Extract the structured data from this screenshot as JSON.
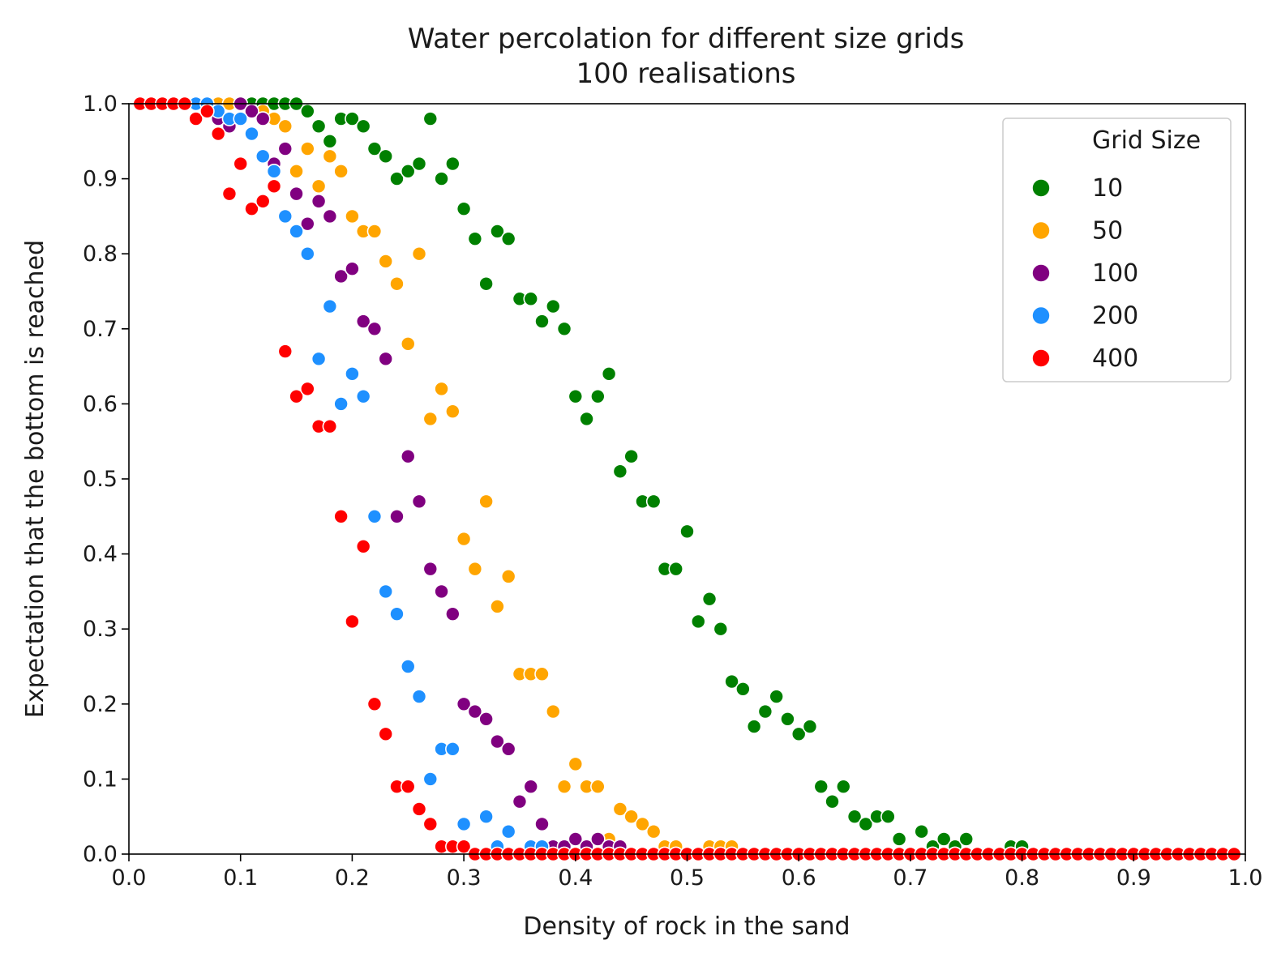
{
  "chart_data": {
    "type": "scatter",
    "title": "Water percolation for different size grids",
    "subtitle": "100 realisations",
    "xlabel": "Density of rock in the sand",
    "ylabel": "Expectation that the bottom is reached",
    "xlim": [
      0.0,
      1.0
    ],
    "ylim": [
      0.0,
      1.0
    ],
    "xticks": [
      "0.0",
      "0.1",
      "0.2",
      "0.3",
      "0.4",
      "0.5",
      "0.6",
      "0.7",
      "0.8",
      "0.9",
      "1.0"
    ],
    "yticks": [
      "0.0",
      "0.1",
      "0.2",
      "0.3",
      "0.4",
      "0.5",
      "0.6",
      "0.7",
      "0.8",
      "0.9",
      "1.0"
    ],
    "grid": false,
    "legend": {
      "title": "Grid Size",
      "placement": "top-right"
    },
    "series": [
      {
        "name": "10",
        "color": "#008000",
        "x": [
          0.01,
          0.02,
          0.03,
          0.04,
          0.05,
          0.06,
          0.07,
          0.08,
          0.09,
          0.1,
          0.11,
          0.12,
          0.13,
          0.14,
          0.15,
          0.16,
          0.17,
          0.18,
          0.19,
          0.2,
          0.21,
          0.22,
          0.23,
          0.24,
          0.25,
          0.26,
          0.27,
          0.28,
          0.29,
          0.3,
          0.31,
          0.32,
          0.33,
          0.34,
          0.35,
          0.36,
          0.37,
          0.38,
          0.39,
          0.4,
          0.41,
          0.42,
          0.43,
          0.44,
          0.45,
          0.46,
          0.47,
          0.48,
          0.49,
          0.5,
          0.51,
          0.52,
          0.53,
          0.54,
          0.55,
          0.56,
          0.57,
          0.58,
          0.59,
          0.6,
          0.61,
          0.62,
          0.63,
          0.64,
          0.65,
          0.66,
          0.67,
          0.68,
          0.69,
          0.7,
          0.71,
          0.72,
          0.73,
          0.74,
          0.75,
          0.76,
          0.77,
          0.78,
          0.79,
          0.8,
          0.81,
          0.82,
          0.83,
          0.84,
          0.85,
          0.86,
          0.87,
          0.88,
          0.89,
          0.9,
          0.91,
          0.92,
          0.93,
          0.94,
          0.95,
          0.96,
          0.97,
          0.98,
          0.99
        ],
        "y": [
          1.0,
          1.0,
          1.0,
          1.0,
          1.0,
          1.0,
          1.0,
          1.0,
          1.0,
          1.0,
          1.0,
          1.0,
          1.0,
          1.0,
          1.0,
          0.99,
          0.97,
          0.95,
          0.98,
          0.98,
          0.97,
          0.94,
          0.93,
          0.9,
          0.91,
          0.92,
          0.98,
          0.9,
          0.92,
          0.86,
          0.82,
          0.76,
          0.83,
          0.82,
          0.74,
          0.74,
          0.71,
          0.73,
          0.7,
          0.61,
          0.58,
          0.61,
          0.64,
          0.51,
          0.53,
          0.47,
          0.47,
          0.38,
          0.38,
          0.43,
          0.31,
          0.34,
          0.3,
          0.23,
          0.22,
          0.17,
          0.19,
          0.21,
          0.18,
          0.16,
          0.17,
          0.09,
          0.07,
          0.09,
          0.05,
          0.04,
          0.05,
          0.05,
          0.02,
          0.0,
          0.03,
          0.01,
          0.02,
          0.01,
          0.02,
          0.0,
          0.0,
          0.0,
          0.01,
          0.01,
          0.0,
          0.0,
          0.0,
          0.0,
          0.0,
          0.0,
          0.0,
          0.0,
          0.0,
          0.0,
          0.0,
          0.0,
          0.0,
          0.0,
          0.0,
          0.0,
          0.0,
          0.0,
          0.0
        ]
      },
      {
        "name": "50",
        "color": "#ffa500",
        "x": [
          0.01,
          0.02,
          0.03,
          0.04,
          0.05,
          0.06,
          0.07,
          0.08,
          0.09,
          0.1,
          0.11,
          0.12,
          0.13,
          0.14,
          0.15,
          0.16,
          0.17,
          0.18,
          0.19,
          0.2,
          0.21,
          0.22,
          0.23,
          0.24,
          0.25,
          0.26,
          0.27,
          0.28,
          0.29,
          0.3,
          0.31,
          0.32,
          0.33,
          0.34,
          0.35,
          0.36,
          0.37,
          0.38,
          0.39,
          0.4,
          0.41,
          0.42,
          0.43,
          0.44,
          0.45,
          0.46,
          0.47,
          0.48,
          0.49,
          0.5,
          0.51,
          0.52,
          0.53,
          0.54,
          0.55,
          0.56,
          0.57,
          0.58,
          0.59,
          0.6,
          0.61,
          0.62,
          0.63,
          0.64,
          0.65,
          0.66,
          0.67,
          0.68,
          0.69,
          0.7,
          0.71,
          0.72,
          0.73,
          0.74,
          0.75,
          0.76,
          0.77,
          0.78,
          0.79,
          0.8,
          0.81,
          0.82,
          0.83,
          0.84,
          0.85,
          0.86,
          0.87,
          0.88,
          0.89,
          0.9,
          0.91,
          0.92,
          0.93,
          0.94,
          0.95,
          0.96,
          0.97,
          0.98,
          0.99
        ],
        "y": [
          1.0,
          1.0,
          1.0,
          1.0,
          1.0,
          1.0,
          1.0,
          1.0,
          1.0,
          1.0,
          0.99,
          0.99,
          0.98,
          0.97,
          0.91,
          0.94,
          0.89,
          0.93,
          0.91,
          0.85,
          0.83,
          0.83,
          0.79,
          0.76,
          0.68,
          0.8,
          0.58,
          0.62,
          0.59,
          0.42,
          0.38,
          0.47,
          0.33,
          0.37,
          0.24,
          0.24,
          0.24,
          0.19,
          0.09,
          0.12,
          0.09,
          0.09,
          0.02,
          0.06,
          0.05,
          0.04,
          0.03,
          0.01,
          0.01,
          0.0,
          0.0,
          0.01,
          0.01,
          0.01,
          0.0,
          0.0,
          0.0,
          0.0,
          0.0,
          0.0,
          0.0,
          0.0,
          0.0,
          0.0,
          0.0,
          0.0,
          0.0,
          0.0,
          0.0,
          0.0,
          0.0,
          0.0,
          0.0,
          0.0,
          0.0,
          0.0,
          0.0,
          0.0,
          0.0,
          0.0,
          0.0,
          0.0,
          0.0,
          0.0,
          0.0,
          0.0,
          0.0,
          0.0,
          0.0,
          0.0,
          0.0,
          0.0,
          0.0,
          0.0,
          0.0,
          0.0,
          0.0,
          0.0,
          0.0
        ]
      },
      {
        "name": "100",
        "color": "#800080",
        "x": [
          0.01,
          0.02,
          0.03,
          0.04,
          0.05,
          0.06,
          0.07,
          0.08,
          0.09,
          0.1,
          0.11,
          0.12,
          0.13,
          0.14,
          0.15,
          0.16,
          0.17,
          0.18,
          0.19,
          0.2,
          0.21,
          0.22,
          0.23,
          0.24,
          0.25,
          0.26,
          0.27,
          0.28,
          0.29,
          0.3,
          0.31,
          0.32,
          0.33,
          0.34,
          0.35,
          0.36,
          0.37,
          0.38,
          0.39,
          0.4,
          0.41,
          0.42,
          0.43,
          0.44,
          0.45,
          0.46,
          0.47,
          0.48,
          0.49,
          0.5,
          0.51,
          0.52,
          0.53,
          0.54,
          0.55,
          0.56,
          0.57,
          0.58,
          0.59,
          0.6,
          0.61,
          0.62,
          0.63,
          0.64,
          0.65,
          0.66,
          0.67,
          0.68,
          0.69,
          0.7,
          0.71,
          0.72,
          0.73,
          0.74,
          0.75,
          0.76,
          0.77,
          0.78,
          0.79,
          0.8,
          0.81,
          0.82,
          0.83,
          0.84,
          0.85,
          0.86,
          0.87,
          0.88,
          0.89,
          0.9,
          0.91,
          0.92,
          0.93,
          0.94,
          0.95,
          0.96,
          0.97,
          0.98,
          0.99
        ],
        "y": [
          1.0,
          1.0,
          1.0,
          1.0,
          1.0,
          1.0,
          0.99,
          0.98,
          0.97,
          1.0,
          0.99,
          0.98,
          0.92,
          0.94,
          0.88,
          0.84,
          0.87,
          0.85,
          0.77,
          0.78,
          0.71,
          0.7,
          0.66,
          0.45,
          0.53,
          0.47,
          0.38,
          0.35,
          0.32,
          0.2,
          0.19,
          0.18,
          0.15,
          0.14,
          0.07,
          0.09,
          0.04,
          0.01,
          0.01,
          0.02,
          0.01,
          0.02,
          0.01,
          0.01,
          0.0,
          0.0,
          0.0,
          0.0,
          0.0,
          0.0,
          0.0,
          0.0,
          0.0,
          0.0,
          0.0,
          0.0,
          0.0,
          0.0,
          0.0,
          0.0,
          0.0,
          0.0,
          0.0,
          0.0,
          0.0,
          0.0,
          0.0,
          0.0,
          0.0,
          0.0,
          0.0,
          0.0,
          0.0,
          0.0,
          0.0,
          0.0,
          0.0,
          0.0,
          0.0,
          0.0,
          0.0,
          0.0,
          0.0,
          0.0,
          0.0,
          0.0,
          0.0,
          0.0,
          0.0,
          0.0,
          0.0,
          0.0,
          0.0,
          0.0,
          0.0,
          0.0,
          0.0,
          0.0,
          0.0
        ]
      },
      {
        "name": "200",
        "color": "#1e90ff",
        "x": [
          0.01,
          0.02,
          0.03,
          0.04,
          0.05,
          0.06,
          0.07,
          0.08,
          0.09,
          0.1,
          0.11,
          0.12,
          0.13,
          0.14,
          0.15,
          0.16,
          0.17,
          0.18,
          0.19,
          0.2,
          0.21,
          0.22,
          0.23,
          0.24,
          0.25,
          0.26,
          0.27,
          0.28,
          0.29,
          0.3,
          0.31,
          0.32,
          0.33,
          0.34,
          0.35,
          0.36,
          0.37,
          0.38,
          0.39,
          0.4,
          0.41,
          0.42,
          0.43,
          0.44,
          0.45,
          0.46,
          0.47,
          0.48,
          0.49,
          0.5,
          0.51,
          0.52,
          0.53,
          0.54,
          0.55,
          0.56,
          0.57,
          0.58,
          0.59,
          0.6,
          0.61,
          0.62,
          0.63,
          0.64,
          0.65,
          0.66,
          0.67,
          0.68,
          0.69,
          0.7,
          0.71,
          0.72,
          0.73,
          0.74,
          0.75,
          0.76,
          0.77,
          0.78,
          0.79,
          0.8,
          0.81,
          0.82,
          0.83,
          0.84,
          0.85,
          0.86,
          0.87,
          0.88,
          0.89,
          0.9,
          0.91,
          0.92,
          0.93,
          0.94,
          0.95,
          0.96,
          0.97,
          0.98,
          0.99
        ],
        "y": [
          1.0,
          1.0,
          1.0,
          1.0,
          1.0,
          1.0,
          1.0,
          0.99,
          0.98,
          0.98,
          0.96,
          0.93,
          0.91,
          0.85,
          0.83,
          0.8,
          0.66,
          0.73,
          0.6,
          0.64,
          0.61,
          0.45,
          0.35,
          0.32,
          0.25,
          0.21,
          0.1,
          0.14,
          0.14,
          0.04,
          0.0,
          0.05,
          0.01,
          0.03,
          0.0,
          0.01,
          0.01,
          0.0,
          0.0,
          0.0,
          0.0,
          0.0,
          0.0,
          0.0,
          0.0,
          0.0,
          0.0,
          0.0,
          0.0,
          0.0,
          0.0,
          0.0,
          0.0,
          0.0,
          0.0,
          0.0,
          0.0,
          0.0,
          0.0,
          0.0,
          0.0,
          0.0,
          0.0,
          0.0,
          0.0,
          0.0,
          0.0,
          0.0,
          0.0,
          0.0,
          0.0,
          0.0,
          0.0,
          0.0,
          0.0,
          0.0,
          0.0,
          0.0,
          0.0,
          0.0,
          0.0,
          0.0,
          0.0,
          0.0,
          0.0,
          0.0,
          0.0,
          0.0,
          0.0,
          0.0,
          0.0,
          0.0,
          0.0,
          0.0,
          0.0,
          0.0,
          0.0,
          0.0,
          0.0
        ]
      },
      {
        "name": "400",
        "color": "#ff0000",
        "x": [
          0.01,
          0.02,
          0.03,
          0.04,
          0.05,
          0.06,
          0.07,
          0.08,
          0.09,
          0.1,
          0.11,
          0.12,
          0.13,
          0.14,
          0.15,
          0.16,
          0.17,
          0.18,
          0.19,
          0.2,
          0.21,
          0.22,
          0.23,
          0.24,
          0.25,
          0.26,
          0.27,
          0.28,
          0.29,
          0.3,
          0.31,
          0.32,
          0.33,
          0.34,
          0.35,
          0.36,
          0.37,
          0.38,
          0.39,
          0.4,
          0.41,
          0.42,
          0.43,
          0.44,
          0.45,
          0.46,
          0.47,
          0.48,
          0.49,
          0.5,
          0.51,
          0.52,
          0.53,
          0.54,
          0.55,
          0.56,
          0.57,
          0.58,
          0.59,
          0.6,
          0.61,
          0.62,
          0.63,
          0.64,
          0.65,
          0.66,
          0.67,
          0.68,
          0.69,
          0.7,
          0.71,
          0.72,
          0.73,
          0.74,
          0.75,
          0.76,
          0.77,
          0.78,
          0.79,
          0.8,
          0.81,
          0.82,
          0.83,
          0.84,
          0.85,
          0.86,
          0.87,
          0.88,
          0.89,
          0.9,
          0.91,
          0.92,
          0.93,
          0.94,
          0.95,
          0.96,
          0.97,
          0.98,
          0.99
        ],
        "y": [
          1.0,
          1.0,
          1.0,
          1.0,
          1.0,
          0.98,
          0.99,
          0.96,
          0.88,
          0.92,
          0.86,
          0.87,
          0.89,
          0.67,
          0.61,
          0.62,
          0.57,
          0.57,
          0.45,
          0.31,
          0.41,
          0.2,
          0.16,
          0.09,
          0.09,
          0.06,
          0.04,
          0.01,
          0.01,
          0.01,
          0.0,
          0.0,
          0.0,
          0.0,
          0.0,
          0.0,
          0.0,
          0.0,
          0.0,
          0.0,
          0.0,
          0.0,
          0.0,
          0.0,
          0.0,
          0.0,
          0.0,
          0.0,
          0.0,
          0.0,
          0.0,
          0.0,
          0.0,
          0.0,
          0.0,
          0.0,
          0.0,
          0.0,
          0.0,
          0.0,
          0.0,
          0.0,
          0.0,
          0.0,
          0.0,
          0.0,
          0.0,
          0.0,
          0.0,
          0.0,
          0.0,
          0.0,
          0.0,
          0.0,
          0.0,
          0.0,
          0.0,
          0.0,
          0.0,
          0.0,
          0.0,
          0.0,
          0.0,
          0.0,
          0.0,
          0.0,
          0.0,
          0.0,
          0.0,
          0.0,
          0.0,
          0.0,
          0.0,
          0.0,
          0.0,
          0.0,
          0.0,
          0.0,
          0.0
        ]
      }
    ]
  }
}
